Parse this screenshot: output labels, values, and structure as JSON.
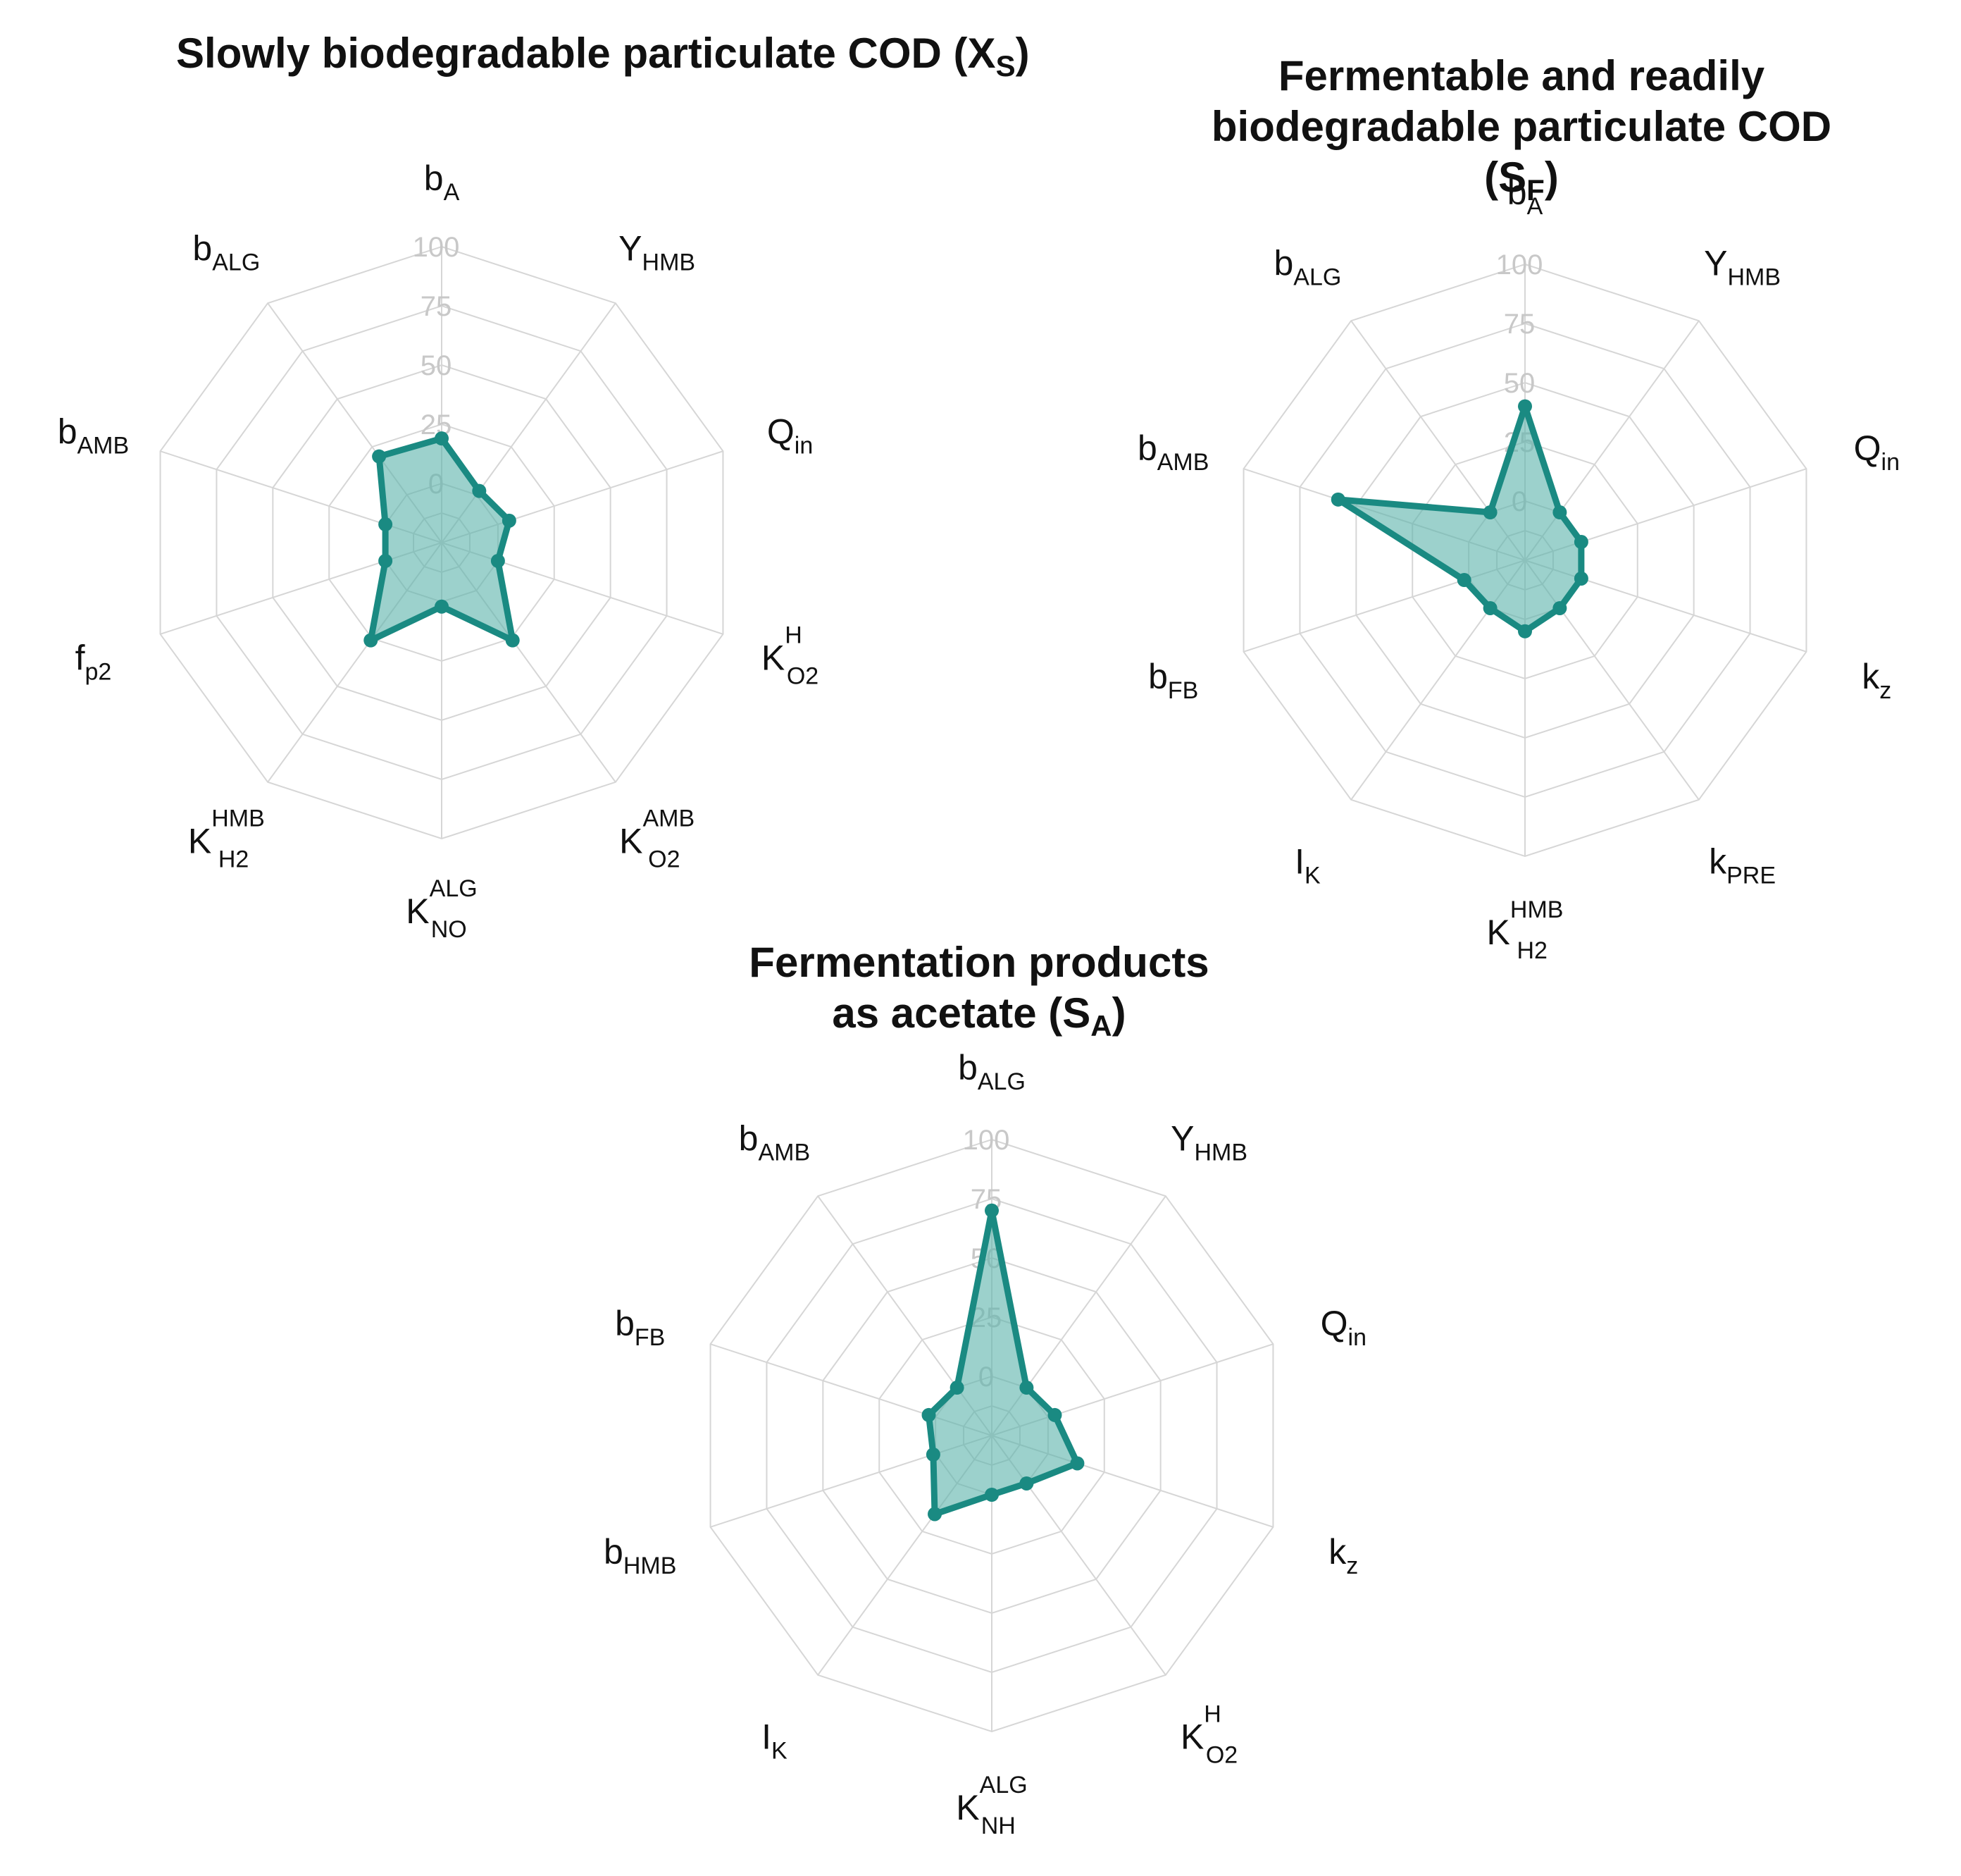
{
  "chart_data": [
    {
      "type": "radar",
      "title": "Slowly biodegradable particulate COD (X",
      "title_subscript": "S",
      "title_close": ")",
      "rlim": [
        0,
        100
      ],
      "ticks": [
        "0",
        "25",
        "50",
        "75",
        "100"
      ],
      "series_color": "#1a8a82",
      "fill_color": "#5fb5ad",
      "axes": [
        {
          "base": "b",
          "sub": "A",
          "sup": "",
          "value": 19
        },
        {
          "base": "Y",
          "sub": "HMB",
          "sup": "",
          "value": 2
        },
        {
          "base": "Q",
          "sub": "in",
          "sup": "",
          "value": 5
        },
        {
          "base": "K",
          "sub": "O2",
          "sup": "H",
          "value": 0
        },
        {
          "base": "K",
          "sub": "O2",
          "sup": "AMB",
          "value": 26
        },
        {
          "base": "K",
          "sub": "NO",
          "sup": "ALG",
          "value": 2
        },
        {
          "base": "K",
          "sub": "H2",
          "sup": "HMB",
          "value": 26
        },
        {
          "base": "f",
          "sub": "p2",
          "sup": "",
          "value": 0
        },
        {
          "base": "b",
          "sub": "AMB",
          "sup": "",
          "value": 0
        },
        {
          "base": "b",
          "sub": "ALG",
          "sup": "",
          "value": 20
        }
      ]
    },
    {
      "type": "radar",
      "title": "Fermentable and readily biodegradable particulate COD (S",
      "title_subscript": "F",
      "title_close": ")",
      "rlim": [
        0,
        100
      ],
      "ticks": [
        "0",
        "25",
        "50",
        "75",
        "100"
      ],
      "series_color": "#1a8a82",
      "fill_color": "#5fb5ad",
      "axes": [
        {
          "base": "b",
          "sub": "A",
          "sup": "",
          "value": 40
        },
        {
          "base": "Y",
          "sub": "HMB",
          "sup": "",
          "value": 0
        },
        {
          "base": "Q",
          "sub": "in",
          "sup": "",
          "value": 0
        },
        {
          "base": "k",
          "sub": "z",
          "sup": "",
          "value": 0
        },
        {
          "base": "k",
          "sub": "PRE",
          "sup": "",
          "value": 0
        },
        {
          "base": "K",
          "sub": "H2",
          "sup": "HMB",
          "value": 5
        },
        {
          "base": "I",
          "sub": "K",
          "sup": "",
          "value": 0
        },
        {
          "base": "b",
          "sub": "FB",
          "sup": "",
          "value": 2
        },
        {
          "base": "b",
          "sub": "AMB",
          "sup": "",
          "value": 58
        },
        {
          "base": "b",
          "sub": "ALG",
          "sup": "",
          "value": 0
        }
      ]
    },
    {
      "type": "radar",
      "title": "Fermentation products as acetate (S",
      "title_subscript": "A",
      "title_close": ")",
      "rlim": [
        0,
        100
      ],
      "ticks": [
        "0",
        "25",
        "50",
        "75",
        "100"
      ],
      "series_color": "#1a8a82",
      "fill_color": "#5fb5ad",
      "axes": [
        {
          "base": "b",
          "sub": "ALG",
          "sup": "",
          "value": 70
        },
        {
          "base": "Y",
          "sub": "HMB",
          "sup": "",
          "value": 0
        },
        {
          "base": "Q",
          "sub": "in",
          "sup": "",
          "value": 3
        },
        {
          "base": "k",
          "sub": "z",
          "sup": "",
          "value": 13
        },
        {
          "base": "K",
          "sub": "O2",
          "sup": "H",
          "value": 0
        },
        {
          "base": "K",
          "sub": "NH",
          "sup": "ALG",
          "value": 0
        },
        {
          "base": "I",
          "sub": "K",
          "sup": "",
          "value": 16
        },
        {
          "base": "b",
          "sub": "HMB",
          "sup": "",
          "value": 1
        },
        {
          "base": "b",
          "sub": "FB",
          "sup": "",
          "value": 3
        },
        {
          "base": "b",
          "sub": "AMB",
          "sup": "",
          "value": 0
        }
      ]
    }
  ]
}
